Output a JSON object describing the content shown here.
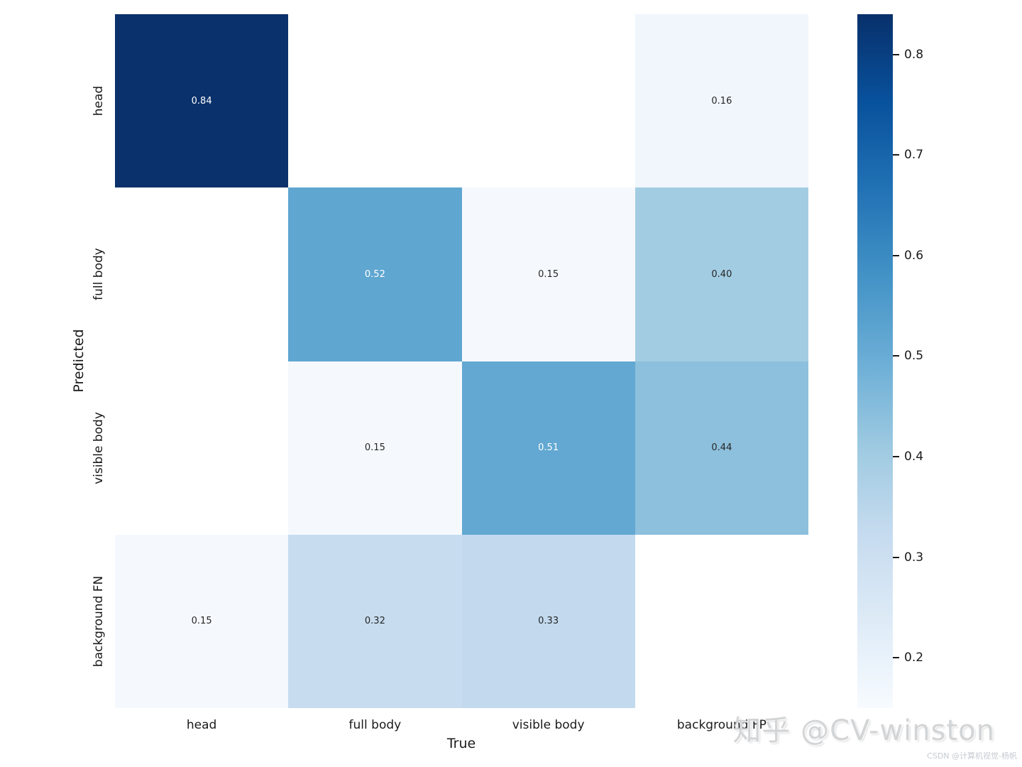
{
  "chart_data": {
    "type": "heatmap",
    "title": "",
    "xlabel": "True",
    "ylabel": "Predicted",
    "x_categories": [
      "head",
      "full body",
      "visible body",
      "background FP"
    ],
    "y_categories": [
      "head",
      "full body",
      "visible body",
      "background FN"
    ],
    "values": [
      [
        0.84,
        null,
        null,
        0.16
      ],
      [
        null,
        0.52,
        0.15,
        0.4
      ],
      [
        null,
        0.15,
        0.51,
        0.44
      ],
      [
        0.15,
        0.32,
        0.33,
        null
      ]
    ],
    "cell_labels": [
      [
        "0.84",
        "",
        "",
        "0.16"
      ],
      [
        "",
        "0.52",
        "0.15",
        "0.40"
      ],
      [
        "",
        "0.15",
        "0.51",
        "0.44"
      ],
      [
        "0.15",
        "0.32",
        "0.33",
        ""
      ]
    ],
    "cell_colors": [
      [
        "#0a316b",
        "#ffffff",
        "#ffffff",
        "#f0f6fc"
      ],
      [
        "#ffffff",
        "#5fa6d1",
        "#f5f9fd",
        "#a2cce2"
      ],
      [
        "#ffffff",
        "#f5f9fd",
        "#62a8d2",
        "#8cc0dd"
      ],
      [
        "#f5f9fd",
        "#c7dcef",
        "#c2d9ee",
        "#ffffff"
      ]
    ],
    "cell_text_colors": [
      [
        "#ffffff",
        "",
        "",
        "#262626"
      ],
      [
        "",
        "#ffffff",
        "#262626",
        "#262626"
      ],
      [
        "",
        "#262626",
        "#ffffff",
        "#262626"
      ],
      [
        "#262626",
        "#262626",
        "#262626",
        ""
      ]
    ],
    "colormap_name": "Blues",
    "colormap_stops": [
      {
        "t": 0.0,
        "color": "#f7fbff"
      },
      {
        "t": 0.125,
        "color": "#deebf7"
      },
      {
        "t": 0.25,
        "color": "#c6dbef"
      },
      {
        "t": 0.375,
        "color": "#9ecae1"
      },
      {
        "t": 0.5,
        "color": "#6baed6"
      },
      {
        "t": 0.625,
        "color": "#4292c6"
      },
      {
        "t": 0.75,
        "color": "#2171b5"
      },
      {
        "t": 0.875,
        "color": "#08519c"
      },
      {
        "t": 1.0,
        "color": "#08306b"
      }
    ],
    "vmin": 0.15,
    "vmax": 0.84,
    "colorbar_ticks": [
      {
        "value": 0.8,
        "label": "0.8"
      },
      {
        "value": 0.7,
        "label": "0.7"
      },
      {
        "value": 0.6,
        "label": "0.6"
      },
      {
        "value": 0.5,
        "label": "0.5"
      },
      {
        "value": 0.4,
        "label": "0.4"
      },
      {
        "value": 0.3,
        "label": "0.3"
      },
      {
        "value": 0.2,
        "label": "0.2"
      }
    ],
    "legend_position": "right",
    "grid": false
  },
  "watermarks": {
    "zhihu": "知乎 @CV-winston",
    "csdn": "CSDN @计算机视觉-杨帆"
  },
  "colors": {
    "background": "#ffffff",
    "tick_text": "#1a1a1a",
    "annot_dark": "#262626",
    "annot_light": "#ffffff",
    "masked_cell": "#ffffff"
  }
}
